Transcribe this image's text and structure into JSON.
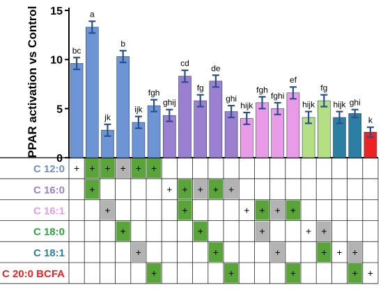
{
  "chart_data": {
    "type": "bar",
    "ylabel": "PPAR activation vs Control",
    "ylim": [
      0,
      15
    ],
    "yticks": [
      0,
      5,
      10,
      15
    ],
    "bars": [
      {
        "value": 9.6,
        "error": 0.6,
        "letter": "bc",
        "color": "#6d95d6"
      },
      {
        "value": 13.3,
        "error": 0.6,
        "letter": "a",
        "color": "#6d95d6"
      },
      {
        "value": 2.8,
        "error": 0.6,
        "letter": "jk",
        "color": "#6d95d6"
      },
      {
        "value": 10.3,
        "error": 0.6,
        "letter": "b",
        "color": "#6d95d6"
      },
      {
        "value": 3.6,
        "error": 0.6,
        "letter": "ijk",
        "color": "#6d95d6"
      },
      {
        "value": 5.3,
        "error": 0.6,
        "letter": "fgh",
        "color": "#6d95d6"
      },
      {
        "value": 4.3,
        "error": 0.6,
        "letter": "ghij",
        "color": "#9b7fd0"
      },
      {
        "value": 8.3,
        "error": 0.6,
        "letter": "cd",
        "color": "#9b7fd0"
      },
      {
        "value": 5.8,
        "error": 0.6,
        "letter": "fg",
        "color": "#9b7fd0"
      },
      {
        "value": 7.8,
        "error": 0.6,
        "letter": "de",
        "color": "#9b7fd0"
      },
      {
        "value": 4.7,
        "error": 0.6,
        "letter": "ghi",
        "color": "#9b7fd0"
      },
      {
        "value": 4.0,
        "error": 0.6,
        "letter": "hijk",
        "color": "#e99be8"
      },
      {
        "value": 5.6,
        "error": 0.6,
        "letter": "fgh",
        "color": "#e99be8"
      },
      {
        "value": 5.0,
        "error": 0.6,
        "letter": "fghi",
        "color": "#e99be8"
      },
      {
        "value": 6.6,
        "error": 0.6,
        "letter": "ef",
        "color": "#e99be8"
      },
      {
        "value": 4.1,
        "error": 0.6,
        "letter": "hijk",
        "color": "#b4e083"
      },
      {
        "value": 5.8,
        "error": 0.6,
        "letter": "fg",
        "color": "#b4e083"
      },
      {
        "value": 4.1,
        "error": 0.6,
        "letter": "hijk",
        "color": "#2b7fa3"
      },
      {
        "value": 4.5,
        "error": 0.4,
        "letter": "ghi",
        "color": "#2b7fa3"
      },
      {
        "value": 2.6,
        "error": 0.5,
        "letter": "k",
        "color": "#ee2222"
      }
    ],
    "error_bar_color": "#2a4f8a",
    "table": {
      "rows": [
        {
          "label": "C 12:0",
          "color": "#6b8fce"
        },
        {
          "label": "C 16:0",
          "color": "#9b7fd0"
        },
        {
          "label": "C 16:1",
          "color": "#e99be8"
        },
        {
          "label": "C 18:0",
          "color": "#2aa33a"
        },
        {
          "label": "C 18:1",
          "color": "#2b7fa3"
        },
        {
          "label": "C 20:0 BCFA",
          "color": "#ee2222"
        }
      ],
      "mark": "+",
      "cells": [
        [
          "w",
          "g",
          "g",
          "s",
          "g",
          "g",
          "_",
          "_",
          "_",
          "_",
          "_",
          "_",
          "_",
          "_",
          "_",
          "_",
          "_",
          "_",
          "_",
          "_"
        ],
        [
          "_",
          "g",
          "_",
          "_",
          "_",
          "_",
          "w",
          "g",
          "s",
          "g",
          "s",
          "_",
          "_",
          "_",
          "_",
          "_",
          "_",
          "_",
          "_",
          "_"
        ],
        [
          "_",
          "_",
          "s",
          "_",
          "_",
          "_",
          "_",
          "g",
          "_",
          "_",
          "_",
          "w",
          "g",
          "s",
          "g",
          "_",
          "_",
          "_",
          "_",
          "_"
        ],
        [
          "_",
          "_",
          "_",
          "g",
          "_",
          "_",
          "_",
          "_",
          "g",
          "_",
          "_",
          "_",
          "s",
          "_",
          "_",
          "w",
          "s",
          "_",
          "_",
          "_"
        ],
        [
          "_",
          "_",
          "_",
          "_",
          "s",
          "_",
          "_",
          "_",
          "_",
          "g",
          "_",
          "_",
          "_",
          "s",
          "_",
          "_",
          "g",
          "w",
          "s",
          "_"
        ],
        [
          "_",
          "_",
          "_",
          "_",
          "_",
          "g",
          "_",
          "_",
          "_",
          "_",
          "g",
          "_",
          "_",
          "_",
          "g",
          "_",
          "_",
          "_",
          "g",
          "w"
        ]
      ],
      "cell_colors": {
        "g": "#5aa53a",
        "s": "#b3b3b3",
        "w": "#ffffff"
      }
    }
  }
}
